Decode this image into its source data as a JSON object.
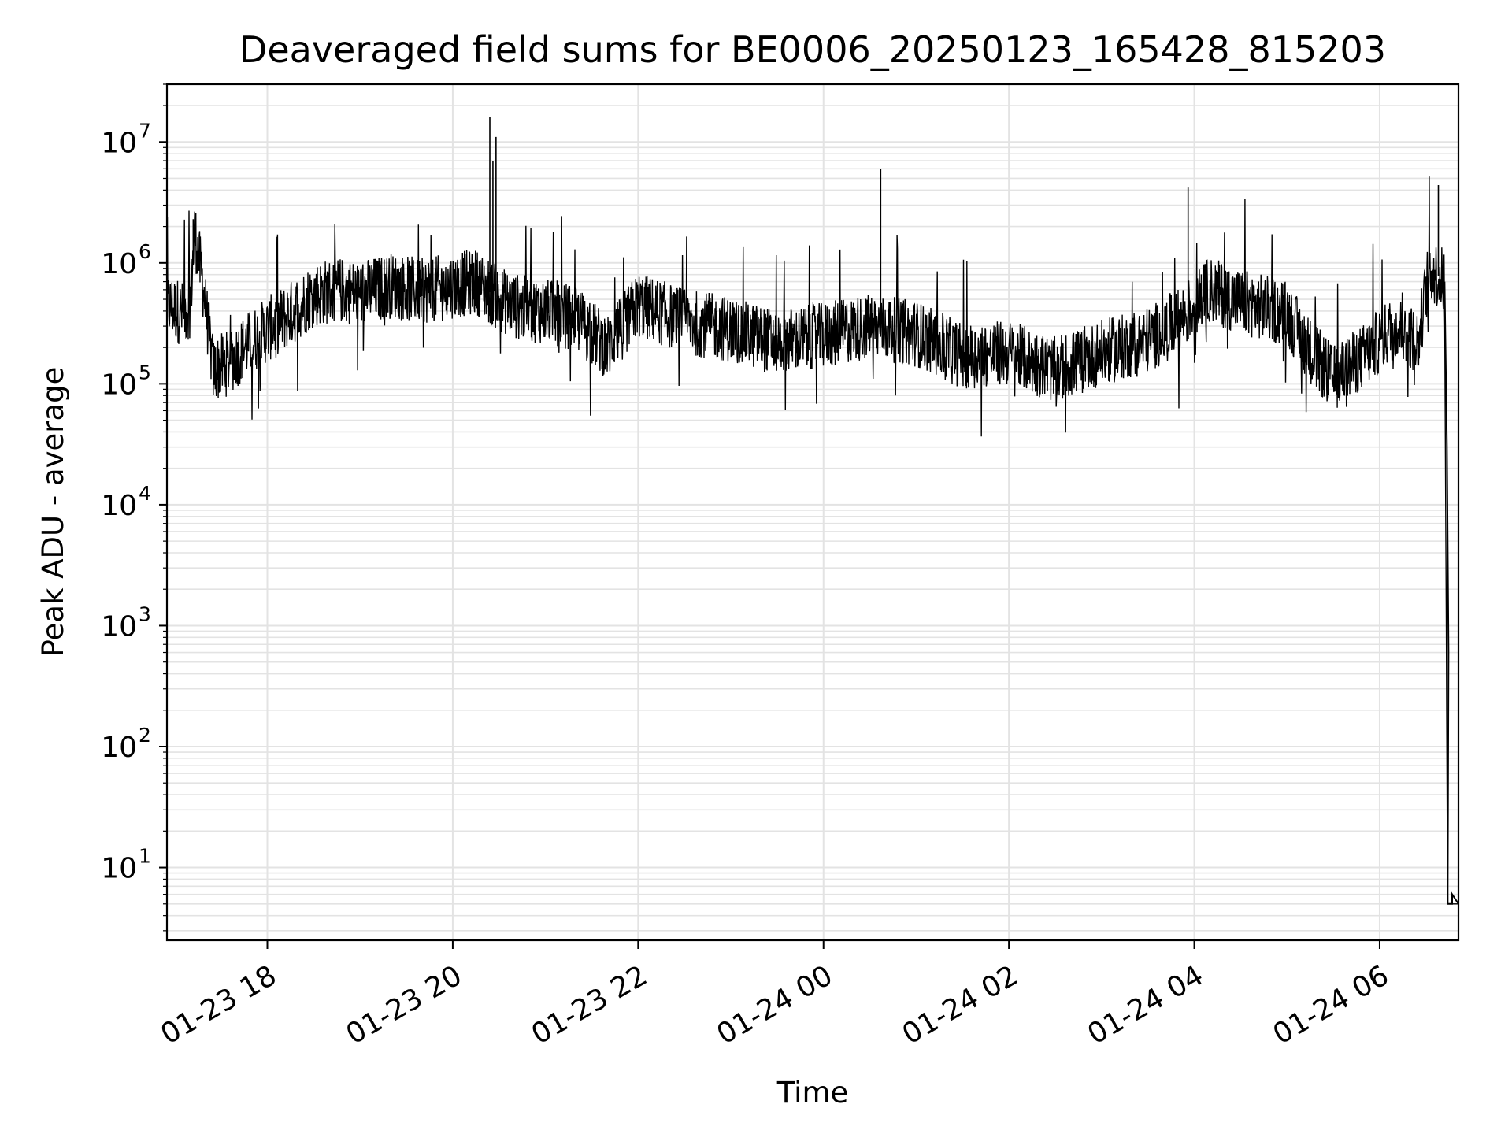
{
  "chart_data": {
    "type": "line",
    "title": "Deaveraged field sums for BE0006_20250123_165428_815203",
    "xlabel": "Time",
    "ylabel": "Peak ADU - average",
    "yscale": "log",
    "ylim": [
      2.5,
      30000000
    ],
    "xlim": [
      "2025-01-23 16:55",
      "2025-01-24 06:51"
    ],
    "grid": "on, major and minor",
    "line_color": "#000000",
    "grid_color": "#e3e3e3",
    "x_ticks": [
      {
        "t": "2025-01-23 18:00",
        "label": "01-23 18"
      },
      {
        "t": "2025-01-23 20:00",
        "label": "01-23 20"
      },
      {
        "t": "2025-01-23 22:00",
        "label": "01-23 22"
      },
      {
        "t": "2025-01-24 00:00",
        "label": "01-24 00"
      },
      {
        "t": "2025-01-24 02:00",
        "label": "01-24 02"
      },
      {
        "t": "2025-01-24 04:00",
        "label": "01-24 04"
      },
      {
        "t": "2025-01-24 06:00",
        "label": "01-24 06"
      }
    ],
    "y_ticks": [
      {
        "value": 10,
        "base": "10",
        "exp": "1"
      },
      {
        "value": 100,
        "base": "10",
        "exp": "2"
      },
      {
        "value": 1000,
        "base": "10",
        "exp": "3"
      },
      {
        "value": 10000,
        "base": "10",
        "exp": "4"
      },
      {
        "value": 100000,
        "base": "10",
        "exp": "5"
      },
      {
        "value": 1000000,
        "base": "10",
        "exp": "6"
      },
      {
        "value": 10000000,
        "base": "10",
        "exp": "7"
      }
    ],
    "series": [
      {
        "x": [
          "2025-01-23 16:55",
          "2025-01-23 17:00",
          "2025-01-23 17:05",
          "2025-01-23 17:10",
          "2025-01-23 17:13",
          "2025-01-23 17:18",
          "2025-01-23 17:25",
          "2025-01-23 17:35",
          "2025-01-23 17:45",
          "2025-01-23 18:00",
          "2025-01-23 18:15",
          "2025-01-23 18:30",
          "2025-01-23 18:45",
          "2025-01-23 19:00",
          "2025-01-23 19:20",
          "2025-01-23 19:40",
          "2025-01-23 20:00",
          "2025-01-23 20:15",
          "2025-01-23 20:30",
          "2025-01-23 20:45",
          "2025-01-23 21:00",
          "2025-01-23 21:20",
          "2025-01-23 21:40",
          "2025-01-23 22:00",
          "2025-01-23 22:30",
          "2025-01-23 23:00",
          "2025-01-23 23:30",
          "2025-01-24 00:00",
          "2025-01-24 00:30",
          "2025-01-24 01:00",
          "2025-01-24 01:30",
          "2025-01-24 02:00",
          "2025-01-24 02:30",
          "2025-01-24 03:00",
          "2025-01-24 03:30",
          "2025-01-24 03:50",
          "2025-01-24 04:10",
          "2025-01-24 04:30",
          "2025-01-24 05:00",
          "2025-01-24 05:15",
          "2025-01-24 05:30",
          "2025-01-24 05:50",
          "2025-01-24 06:10",
          "2025-01-24 06:25",
          "2025-01-24 06:32",
          "2025-01-24 06:42",
          "2025-01-24 06:44",
          "2025-01-24 06:51"
        ],
        "y": [
          450000,
          420000,
          380000,
          450000,
          1800000,
          700000,
          130000,
          150000,
          200000,
          280000,
          380000,
          550000,
          600000,
          560000,
          650000,
          580000,
          650000,
          700000,
          500000,
          420000,
          400000,
          350000,
          200000,
          450000,
          330000,
          280000,
          220000,
          250000,
          300000,
          260000,
          170000,
          180000,
          130000,
          180000,
          230000,
          330000,
          600000,
          480000,
          380000,
          190000,
          110000,
          170000,
          300000,
          220000,
          900000,
          700000,
          5,
          5
        ]
      }
    ]
  }
}
